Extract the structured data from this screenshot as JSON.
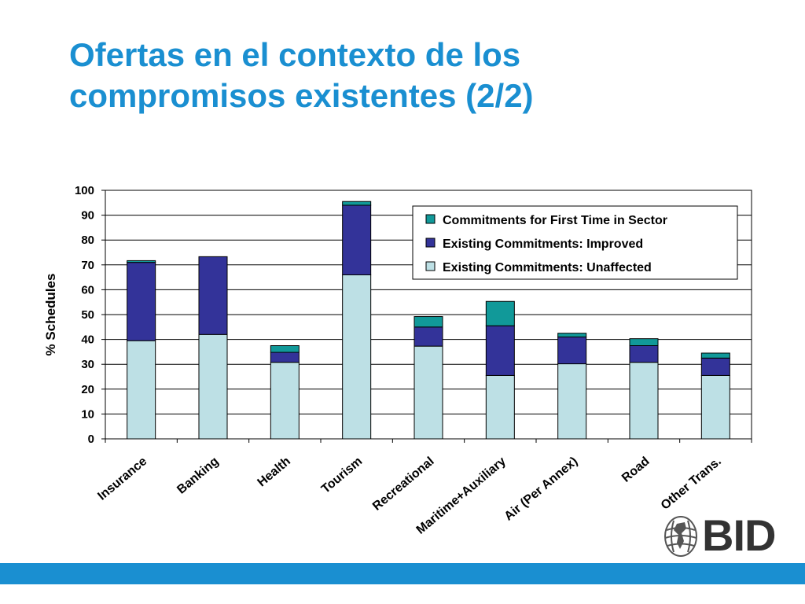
{
  "slide": {
    "title_line1": "Ofertas en el contexto de los",
    "title_line2": "compromisos existentes (2/2)",
    "accent_color": "#1a8fd1"
  },
  "logo": {
    "text": "BID",
    "icon": "globe-icon"
  },
  "chart_data": {
    "type": "bar",
    "stacked": true,
    "categories": [
      "Insurance",
      "Banking",
      "Health",
      "Tourism",
      "Recreational",
      "Maritime+Auxiliary",
      "Air (Per Annex)",
      "Road",
      "Other Trans."
    ],
    "series": [
      {
        "name": "Existing Commitments: Unaffected",
        "color": "#bde0e5",
        "values": [
          39.5,
          42,
          30.8,
          66,
          37.3,
          25.5,
          30.2,
          30.8,
          25.5
        ]
      },
      {
        "name": "Existing Commitments: Improved",
        "color": "#333399",
        "values": [
          31.5,
          31.3,
          4,
          28,
          7.7,
          20,
          10.8,
          6.7,
          7
        ]
      },
      {
        "name": "Commitments for First Time in Sector",
        "color": "#119999",
        "values": [
          0.7,
          0,
          2.7,
          1.5,
          4.2,
          9.8,
          1.5,
          2.8,
          2
        ]
      }
    ],
    "xlabel": "",
    "ylabel": "% Schedules",
    "ylim": [
      0,
      100
    ],
    "yticks": [
      0,
      10,
      20,
      30,
      40,
      50,
      60,
      70,
      80,
      90,
      100
    ],
    "grid": true,
    "legend_position": "top-right"
  }
}
